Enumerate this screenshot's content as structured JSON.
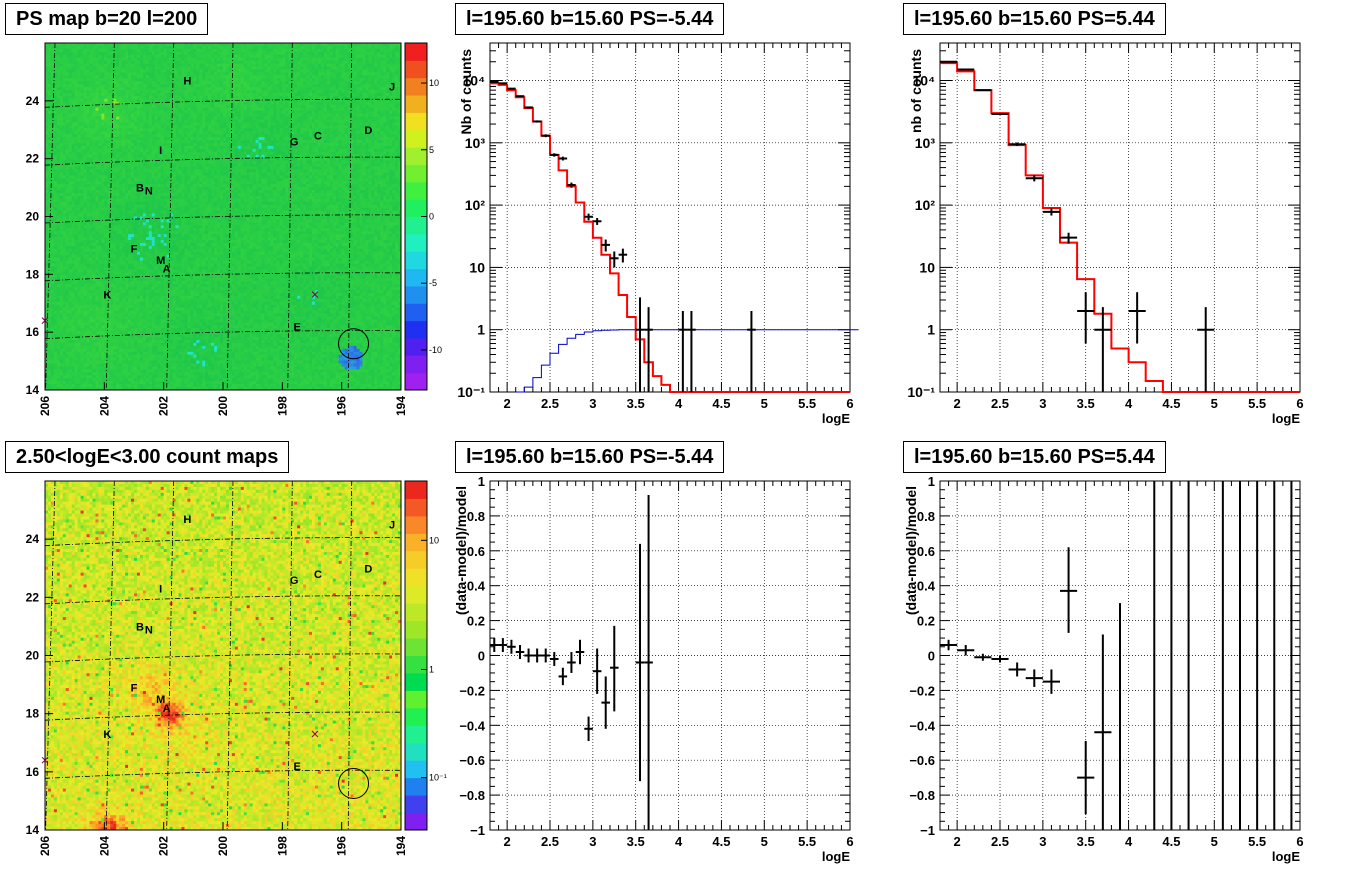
{
  "chart_data": [
    {
      "id": "ps_map",
      "type": "heatmap",
      "title": "PS map b=20 l=200",
      "xaxis": {
        "range": [
          206,
          194
        ],
        "reversed": true,
        "ticks": [
          "206",
          "204",
          "202",
          "200",
          "198",
          "196",
          "194"
        ]
      },
      "yaxis": {
        "range": [
          14,
          26
        ],
        "ticks": [
          "14",
          "16",
          "18",
          "20",
          "22",
          "24"
        ]
      },
      "colorbar": {
        "range": [
          -13,
          13
        ],
        "ticks": [
          "-10",
          "-5",
          "0",
          "5",
          "10"
        ]
      },
      "grid": true,
      "circle": {
        "l": 195.6,
        "b": 15.6
      },
      "crosses": [
        {
          "l": 196.9,
          "b": 17.3
        },
        {
          "l": 206.0,
          "b": 16.4
        }
      ],
      "sources": [
        {
          "label": "H",
          "l": 201.2,
          "b": 24.7
        },
        {
          "label": "J",
          "l": 194.3,
          "b": 24.5
        },
        {
          "label": "D",
          "l": 195.1,
          "b": 23.0
        },
        {
          "label": "C",
          "l": 196.8,
          "b": 22.8
        },
        {
          "label": "G",
          "l": 197.6,
          "b": 22.6
        },
        {
          "label": "I",
          "l": 202.1,
          "b": 22.3
        },
        {
          "label": "B",
          "l": 202.8,
          "b": 21.0
        },
        {
          "label": "N",
          "l": 202.5,
          "b": 20.9
        },
        {
          "label": "F",
          "l": 203.0,
          "b": 18.9
        },
        {
          "label": "M",
          "l": 202.1,
          "b": 18.5
        },
        {
          "label": "A",
          "l": 201.9,
          "b": 18.2
        },
        {
          "label": "K",
          "l": 203.9,
          "b": 17.3
        },
        {
          "label": "E",
          "l": 197.5,
          "b": 16.2
        }
      ]
    },
    {
      "id": "spectrum_neg",
      "type": "line",
      "title": "l=195.60 b=15.60 PS=-5.44",
      "xlabel": "logE",
      "ylabel": "Nb of counts",
      "xlim": [
        1.8,
        6.0
      ],
      "ylim": [
        0.1,
        40000
      ],
      "yscale": "log",
      "xticks": [
        "2",
        "2.5",
        "3",
        "3.5",
        "4",
        "4.5",
        "5",
        "5.5",
        "6"
      ],
      "yticks": [
        {
          "v": 0.1,
          "label": "10⁻¹"
        },
        {
          "v": 1,
          "label": "1"
        },
        {
          "v": 10,
          "label": "10"
        },
        {
          "v": 100,
          "label": "10²"
        },
        {
          "v": 1000,
          "label": "10³"
        },
        {
          "v": 10000,
          "label": "10⁴"
        }
      ],
      "bin_width": 0.1,
      "model_x0": 1.8,
      "model": [
        9000,
        8500,
        7000,
        5400,
        3600,
        2200,
        1300,
        640,
        360,
        200,
        110,
        54,
        30,
        16,
        8,
        3.6,
        1.6,
        0.7,
        0.3,
        0.18,
        0.13,
        0.1,
        0.1,
        0.1,
        0.1,
        0.1,
        0.1,
        0.1,
        0.1,
        0.1,
        0.1,
        0.1,
        0.1,
        0.1,
        0.1,
        0.1,
        0.1,
        0.1,
        0.1,
        0.1,
        0.1,
        0.1
      ],
      "efficiency_x0": 2.1,
      "efficiency": [
        0.1,
        0.12,
        0.17,
        0.27,
        0.42,
        0.58,
        0.73,
        0.84,
        0.92,
        0.96,
        0.98,
        0.99,
        1,
        1,
        1,
        1,
        1,
        1,
        1,
        1,
        1,
        1,
        1,
        1,
        1,
        1,
        1,
        1,
        1,
        1,
        1,
        1,
        1,
        1,
        1,
        1,
        1,
        1,
        1,
        1,
        1
      ],
      "data": [
        {
          "x": 1.85,
          "y": 9500,
          "lo": 9300,
          "hi": 9700
        },
        {
          "x": 1.95,
          "y": 9000,
          "lo": 8800,
          "hi": 9200
        },
        {
          "x": 2.05,
          "y": 7400,
          "lo": 7200,
          "hi": 7600
        },
        {
          "x": 2.15,
          "y": 5600,
          "lo": 5450,
          "hi": 5750
        },
        {
          "x": 2.25,
          "y": 3700,
          "lo": 3580,
          "hi": 3820
        },
        {
          "x": 2.35,
          "y": 2200,
          "lo": 2110,
          "hi": 2290
        },
        {
          "x": 2.45,
          "y": 1300,
          "lo": 1230,
          "hi": 1370
        },
        {
          "x": 2.55,
          "y": 640,
          "lo": 600,
          "hi": 680
        },
        {
          "x": 2.65,
          "y": 560,
          "lo": 520,
          "hi": 600
        },
        {
          "x": 2.75,
          "y": 210,
          "lo": 190,
          "hi": 230
        },
        {
          "x": 2.95,
          "y": 65,
          "lo": 57,
          "hi": 73
        },
        {
          "x": 3.05,
          "y": 55,
          "lo": 48,
          "hi": 62
        },
        {
          "x": 3.15,
          "y": 23,
          "lo": 18,
          "hi": 28
        },
        {
          "x": 3.25,
          "y": 14,
          "lo": 10,
          "hi": 18
        },
        {
          "x": 3.35,
          "y": 16,
          "lo": 12,
          "hi": 20
        },
        {
          "x": 3.55,
          "y": 1,
          "lo": 0.1,
          "hi": 3.3
        },
        {
          "x": 3.65,
          "y": 1,
          "lo": 0.1,
          "hi": 2.3
        },
        {
          "x": 4.05,
          "y": 1,
          "lo": 0.1,
          "hi": 2.0
        },
        {
          "x": 4.15,
          "y": 1,
          "lo": 0.1,
          "hi": 2.0
        },
        {
          "x": 4.85,
          "y": 1,
          "lo": 0.1,
          "hi": 2.0
        }
      ]
    },
    {
      "id": "spectrum_pos",
      "type": "line",
      "title": "l=195.60 b=15.60 PS=5.44",
      "xlabel": "logE",
      "ylabel": "nb of counts",
      "xlim": [
        1.8,
        6.0
      ],
      "ylim": [
        0.1,
        40000
      ],
      "yscale": "log",
      "xticks": [
        "2",
        "2.5",
        "3",
        "3.5",
        "4",
        "4.5",
        "5",
        "5.5",
        "6"
      ],
      "yticks": [
        {
          "v": 0.1,
          "label": "10⁻¹"
        },
        {
          "v": 1,
          "label": "1"
        },
        {
          "v": 10,
          "label": "10"
        },
        {
          "v": 100,
          "label": "10²"
        },
        {
          "v": 1000,
          "label": "10³"
        },
        {
          "v": 10000,
          "label": "10⁴"
        }
      ],
      "bin_width": 0.2,
      "model_x0": 1.8,
      "model": [
        19000,
        14000,
        7000,
        3000,
        920,
        300,
        90,
        25,
        6.5,
        1.8,
        0.5,
        0.3,
        0.15,
        0.1,
        0.1,
        0.1,
        0.1,
        0.1,
        0.1,
        0.1,
        0.1
      ],
      "data": [
        {
          "x": 1.9,
          "y": 20000,
          "lo": 19700,
          "hi": 20300
        },
        {
          "x": 2.1,
          "y": 15000,
          "lo": 14750,
          "hi": 15250
        },
        {
          "x": 2.3,
          "y": 7000,
          "lo": 6850,
          "hi": 7150
        },
        {
          "x": 2.5,
          "y": 2900,
          "lo": 2800,
          "hi": 3000
        },
        {
          "x": 2.7,
          "y": 950,
          "lo": 890,
          "hi": 1010
        },
        {
          "x": 2.9,
          "y": 270,
          "lo": 240,
          "hi": 300
        },
        {
          "x": 3.1,
          "y": 78,
          "lo": 68,
          "hi": 88
        },
        {
          "x": 3.3,
          "y": 30,
          "lo": 24,
          "hi": 36
        },
        {
          "x": 3.5,
          "y": 2,
          "lo": 0.6,
          "hi": 4
        },
        {
          "x": 3.7,
          "y": 1,
          "lo": 0.1,
          "hi": 2.3
        },
        {
          "x": 4.1,
          "y": 2,
          "lo": 0.6,
          "hi": 4
        },
        {
          "x": 4.9,
          "y": 1,
          "lo": 0.1,
          "hi": 2.3
        }
      ]
    },
    {
      "id": "count_map",
      "type": "heatmap",
      "title": "2.50<logE<3.00 count maps",
      "xaxis": {
        "range": [
          206,
          194
        ],
        "reversed": true,
        "ticks": [
          "206",
          "204",
          "202",
          "200",
          "198",
          "196",
          "194"
        ]
      },
      "yaxis": {
        "range": [
          14,
          26
        ],
        "ticks": [
          "14",
          "16",
          "18",
          "20",
          "22",
          "24"
        ]
      },
      "colorbar": {
        "scale": "log",
        "ticks": [
          "10⁻¹",
          "1",
          "10"
        ]
      },
      "grid": true,
      "circle": {
        "l": 195.6,
        "b": 15.6
      },
      "crosses": [
        {
          "l": 196.9,
          "b": 17.3
        },
        {
          "l": 206.0,
          "b": 16.4
        }
      ],
      "sources": [
        {
          "label": "H",
          "l": 201.2,
          "b": 24.7
        },
        {
          "label": "J",
          "l": 194.3,
          "b": 24.5
        },
        {
          "label": "D",
          "l": 195.1,
          "b": 23.0
        },
        {
          "label": "C",
          "l": 196.8,
          "b": 22.8
        },
        {
          "label": "G",
          "l": 197.6,
          "b": 22.6
        },
        {
          "label": "I",
          "l": 202.1,
          "b": 22.3
        },
        {
          "label": "B",
          "l": 202.8,
          "b": 21.0
        },
        {
          "label": "N",
          "l": 202.5,
          "b": 20.9
        },
        {
          "label": "F",
          "l": 203.0,
          "b": 18.9
        },
        {
          "label": "M",
          "l": 202.1,
          "b": 18.5
        },
        {
          "label": "A",
          "l": 201.9,
          "b": 18.2
        },
        {
          "label": "K",
          "l": 203.9,
          "b": 17.3
        },
        {
          "label": "E",
          "l": 197.5,
          "b": 16.2
        }
      ]
    },
    {
      "id": "residual_neg",
      "type": "scatter",
      "title": "l=195.60 b=15.60 PS=-5.44",
      "xlabel": "logE",
      "ylabel": "(data-model)/model",
      "xlim": [
        1.8,
        6.0
      ],
      "ylim": [
        -1,
        1
      ],
      "xticks": [
        "2",
        "2.5",
        "3",
        "3.5",
        "4",
        "4.5",
        "5",
        "5.5",
        "6"
      ],
      "yticks": [
        "-1",
        "-0.8",
        "-0.6",
        "-0.4",
        "-0.2",
        "0",
        "0.2",
        "0.4",
        "0.6",
        "0.8",
        "1"
      ],
      "bin_width": 0.1,
      "data": [
        {
          "x": 1.85,
          "y": 0.06,
          "lo": 0.02,
          "hi": 0.1
        },
        {
          "x": 1.95,
          "y": 0.06,
          "lo": 0.02,
          "hi": 0.1
        },
        {
          "x": 2.05,
          "y": 0.05,
          "lo": 0.01,
          "hi": 0.09
        },
        {
          "x": 2.15,
          "y": 0.02,
          "lo": -0.02,
          "hi": 0.06
        },
        {
          "x": 2.25,
          "y": 0.0,
          "lo": -0.04,
          "hi": 0.04
        },
        {
          "x": 2.35,
          "y": 0.0,
          "lo": -0.04,
          "hi": 0.04
        },
        {
          "x": 2.45,
          "y": 0.0,
          "lo": -0.04,
          "hi": 0.04
        },
        {
          "x": 2.55,
          "y": -0.02,
          "lo": -0.06,
          "hi": 0.02
        },
        {
          "x": 2.65,
          "y": -0.12,
          "lo": -0.17,
          "hi": -0.07
        },
        {
          "x": 2.75,
          "y": -0.04,
          "lo": -0.1,
          "hi": 0.02
        },
        {
          "x": 2.85,
          "y": 0.02,
          "lo": -0.05,
          "hi": 0.09
        },
        {
          "x": 2.95,
          "y": -0.42,
          "lo": -0.49,
          "hi": -0.35
        },
        {
          "x": 3.05,
          "y": -0.09,
          "lo": -0.22,
          "hi": 0.04
        },
        {
          "x": 3.15,
          "y": -0.27,
          "lo": -0.42,
          "hi": -0.12
        },
        {
          "x": 3.25,
          "y": -0.07,
          "lo": -0.32,
          "hi": 0.17
        },
        {
          "x": 3.55,
          "y": -0.04,
          "lo": -0.72,
          "hi": 0.64
        },
        {
          "x": 3.65,
          "y": -0.04,
          "lo": -1.0,
          "hi": 0.92
        }
      ]
    },
    {
      "id": "residual_pos",
      "type": "scatter",
      "title": "l=195.60 b=15.60 PS=5.44",
      "xlabel": "logE",
      "ylabel": "(data-model)/model",
      "xlim": [
        1.8,
        6.0
      ],
      "ylim": [
        -1,
        1
      ],
      "xticks": [
        "2",
        "2.5",
        "3",
        "3.5",
        "4",
        "4.5",
        "5",
        "5.5",
        "6"
      ],
      "yticks": [
        "-1",
        "-0.8",
        "-0.6",
        "-0.4",
        "-0.2",
        "0",
        "0.2",
        "0.4",
        "0.6",
        "0.8",
        "1"
      ],
      "bin_width": 0.2,
      "data": [
        {
          "x": 1.9,
          "y": 0.06,
          "lo": 0.03,
          "hi": 0.09
        },
        {
          "x": 2.1,
          "y": 0.03,
          "lo": 0.0,
          "hi": 0.06
        },
        {
          "x": 2.3,
          "y": -0.01,
          "lo": -0.03,
          "hi": 0.01
        },
        {
          "x": 2.5,
          "y": -0.02,
          "lo": -0.04,
          "hi": 0.0
        },
        {
          "x": 2.7,
          "y": -0.08,
          "lo": -0.12,
          "hi": -0.04
        },
        {
          "x": 2.9,
          "y": -0.13,
          "lo": -0.18,
          "hi": -0.08
        },
        {
          "x": 3.1,
          "y": -0.15,
          "lo": -0.22,
          "hi": -0.08
        },
        {
          "x": 3.3,
          "y": 0.37,
          "lo": 0.13,
          "hi": 0.62
        },
        {
          "x": 3.5,
          "y": -0.7,
          "lo": -0.91,
          "hi": -0.49
        },
        {
          "x": 3.7,
          "y": -0.44,
          "lo": -1.0,
          "hi": 0.12
        },
        {
          "x": 3.9,
          "y": null,
          "lo": -1.0,
          "hi": 0.3
        },
        {
          "x": 4.3,
          "y": null,
          "lo": -1.0,
          "hi": 1.0
        },
        {
          "x": 4.5,
          "y": null,
          "lo": -1.0,
          "hi": 1.0
        },
        {
          "x": 4.7,
          "y": null,
          "lo": -1.0,
          "hi": 1.0
        },
        {
          "x": 5.1,
          "y": null,
          "lo": -1.0,
          "hi": 1.0
        },
        {
          "x": 5.3,
          "y": null,
          "lo": -1.0,
          "hi": 1.0
        },
        {
          "x": 5.5,
          "y": null,
          "lo": -1.0,
          "hi": 1.0
        },
        {
          "x": 5.7,
          "y": null,
          "lo": -1.0,
          "hi": 1.0
        },
        {
          "x": 5.9,
          "y": null,
          "lo": -1.0,
          "hi": 1.0
        }
      ]
    }
  ]
}
